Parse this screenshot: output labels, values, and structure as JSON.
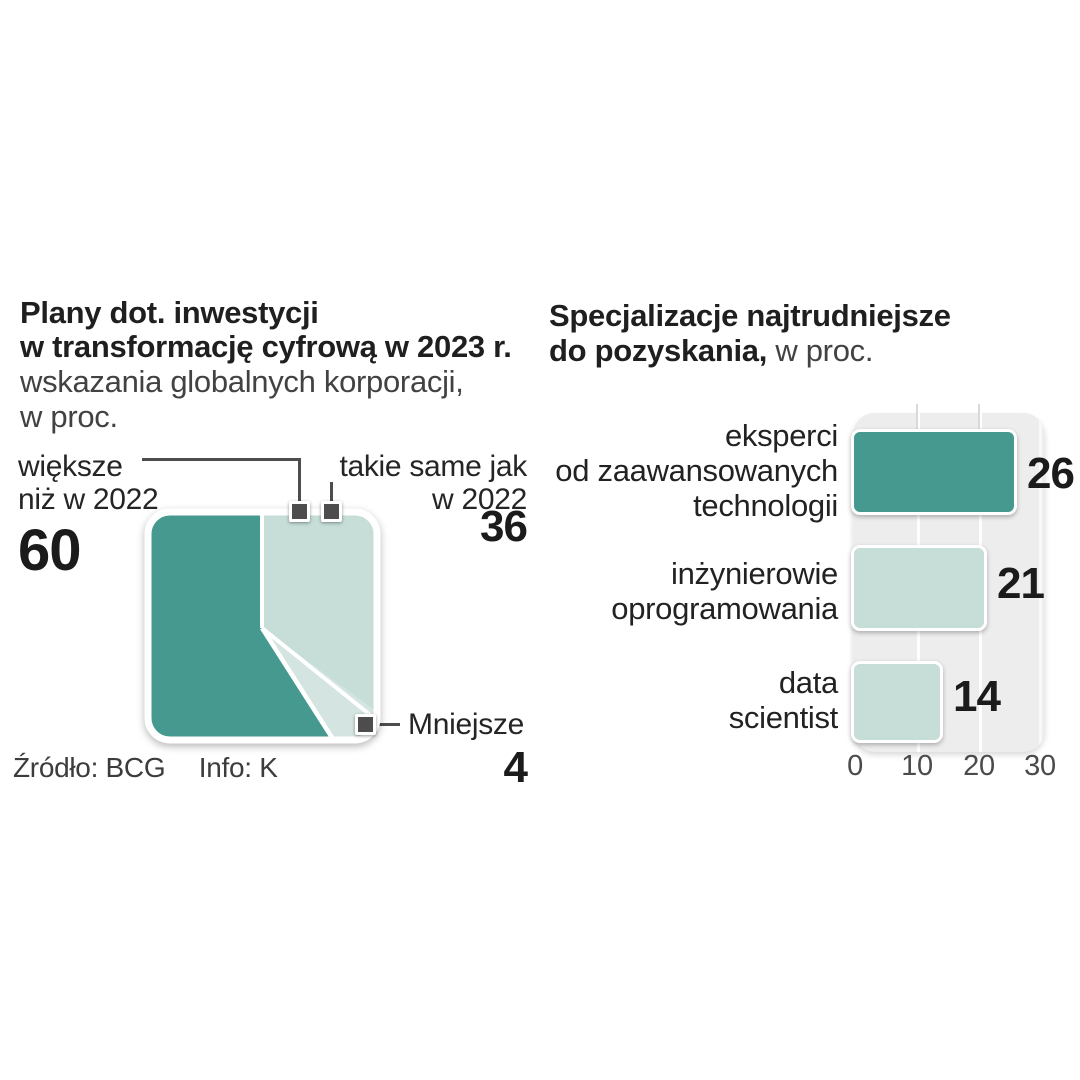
{
  "left_chart": {
    "title_lines": [
      "Plany dot. inwestycji",
      "w transformację cyfrową w 2023 r."
    ],
    "subtitle_lines": [
      "wskazania globalnych korporacji,",
      "w proc."
    ],
    "callout_bigger": {
      "lines": [
        "większe",
        "niż w 2022"
      ],
      "value": "60"
    },
    "callout_same": {
      "lines": [
        "takie same jak",
        "w 2022"
      ],
      "value": "36"
    },
    "callout_smaller": {
      "label": "Mniejsze",
      "value": "4"
    }
  },
  "right_chart": {
    "title_line1": "Specjalizacje najtrudniejsze",
    "title_line2_bold": "do pozyskania,",
    "title_line2_regular": " w proc.",
    "bars": [
      {
        "label_lines": [
          "eksperci",
          "od zaawansowanych",
          "technologii"
        ],
        "value": 26,
        "display_value": "26",
        "color": "#45998f"
      },
      {
        "label_lines": [
          "inżynierowie",
          "oprogramowania"
        ],
        "value": 21,
        "display_value": "21",
        "color": "#c6ddd8"
      },
      {
        "label_lines": [
          "data",
          "scientist"
        ],
        "value": 14,
        "display_value": "14",
        "color": "#c6ddd8"
      }
    ],
    "x_ticks": [
      "0",
      "10",
      "20",
      "30"
    ]
  },
  "footer": {
    "source": "Źródło: BCG",
    "info": "Info: K"
  },
  "colors": {
    "teal_dark": "#45998f",
    "teal_light": "#c6ddd8",
    "teal_pale": "#d4e5e1",
    "panel_gray": "#ededed",
    "marker_gray": "#4d4d4d",
    "text_dark": "#1f1f1f"
  },
  "chart_data": [
    {
      "type": "pie",
      "title": "Plany dot. inwestycji w transformację cyfrową w 2023 r.",
      "subtitle": "wskazania globalnych korporacji, w proc.",
      "labels": [
        "większe niż w 2022",
        "takie same jak w 2022",
        "Mniejsze"
      ],
      "values": [
        60,
        36,
        4
      ],
      "colors": [
        "#45998f",
        "#c6ddd8",
        "#d4e5e1"
      ],
      "note": "rendered as a rounded-square area divided into three segments with callout markers",
      "source": "Źródło: BCG",
      "credit": "Info: K"
    },
    {
      "type": "bar",
      "orientation": "horizontal",
      "title": "Specjalizacje najtrudniejsze do pozyskania, w proc.",
      "categories": [
        "eksperci od zaawansowanych technologii",
        "inżynierowie oprogramowania",
        "data scientist"
      ],
      "values": [
        26,
        21,
        14
      ],
      "colors": [
        "#45998f",
        "#c6ddd8",
        "#c6ddd8"
      ],
      "xlim": [
        0,
        30
      ],
      "x_ticks": [
        0,
        10,
        20,
        30
      ],
      "grid": true,
      "legend": false,
      "value_labels": "right of bars, bold"
    }
  ]
}
